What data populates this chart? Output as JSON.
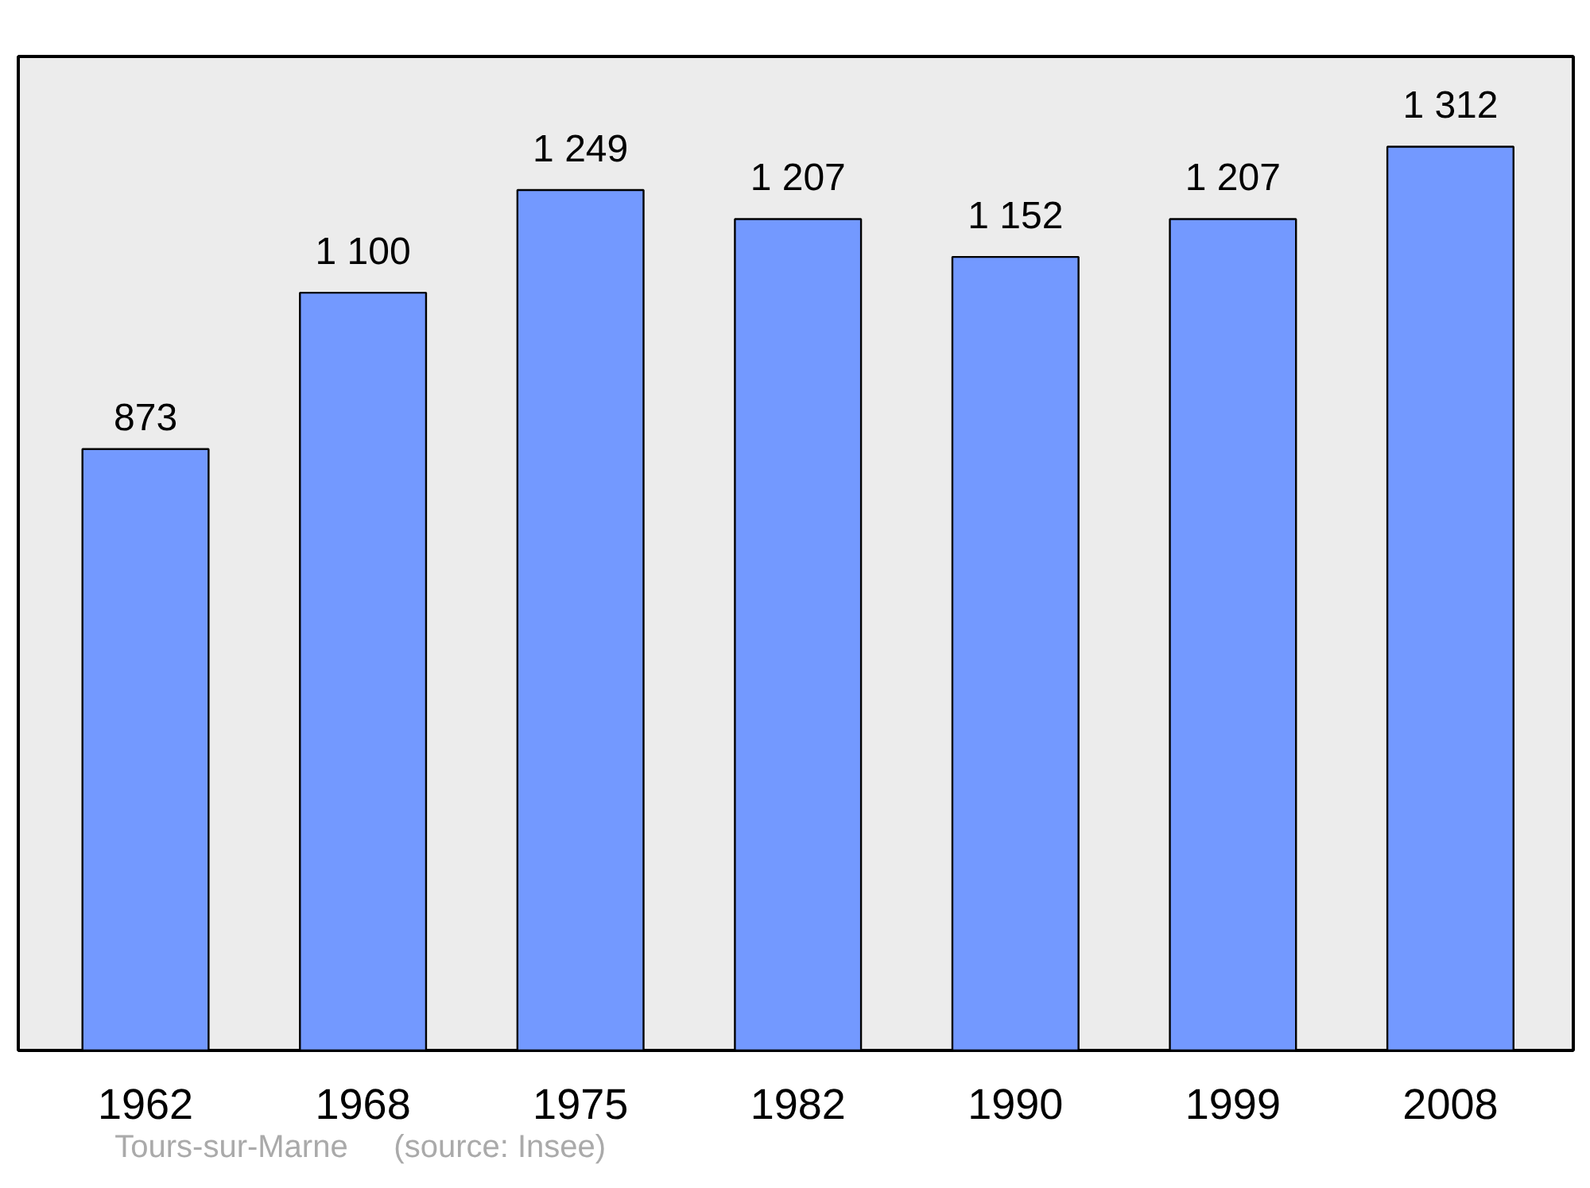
{
  "chart_data": {
    "type": "bar",
    "categories": [
      "1962",
      "1968",
      "1975",
      "1982",
      "1990",
      "1999",
      "2008"
    ],
    "values": [
      873,
      1100,
      1249,
      1207,
      1152,
      1207,
      1312
    ],
    "value_labels": [
      "873",
      "1 100",
      "1 249",
      "1 207",
      "1 152",
      "1 207",
      "1 312"
    ],
    "color": "#7399ff",
    "ylim": [
      0,
      1443
    ],
    "tick_labels": "x",
    "grid": false,
    "annotations": [
      "Tours-sur-Marne",
      "(source: Insee)"
    ]
  }
}
